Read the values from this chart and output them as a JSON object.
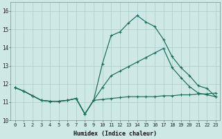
{
  "background_color": "#cde8e5",
  "grid_color": "#aaccca",
  "line_color": "#1a6b5a",
  "xlabel": "Humidex (Indice chaleur)",
  "xlim": [
    -0.5,
    23.5
  ],
  "ylim": [
    10.0,
    16.5
  ],
  "yticks": [
    10,
    11,
    12,
    13,
    14,
    15,
    16
  ],
  "xtick_labels": [
    "0",
    "1",
    "2",
    "3",
    "4",
    "5",
    "6",
    "7",
    "8",
    "9",
    "10",
    "11",
    "12",
    "13",
    "14",
    "15",
    "16",
    "17",
    "18",
    "19",
    "20",
    "21",
    "22",
    "23"
  ],
  "line1_y": [
    11.8,
    11.6,
    11.35,
    11.1,
    11.05,
    11.05,
    11.1,
    11.2,
    10.35,
    11.1,
    13.1,
    14.65,
    14.85,
    15.35,
    15.75,
    15.4,
    15.15,
    14.45,
    13.5,
    12.9,
    12.45,
    11.9,
    11.75,
    11.3
  ],
  "line2_y": [
    11.8,
    11.6,
    11.35,
    11.1,
    11.05,
    11.05,
    11.1,
    11.2,
    10.35,
    11.1,
    11.15,
    11.2,
    11.25,
    11.3,
    11.3,
    11.3,
    11.3,
    11.35,
    11.35,
    11.4,
    11.4,
    11.45,
    11.45,
    11.5
  ],
  "line3_y": [
    11.8,
    11.6,
    11.35,
    11.1,
    11.05,
    11.05,
    11.1,
    11.2,
    10.35,
    11.1,
    11.8,
    12.45,
    12.7,
    12.95,
    13.2,
    13.45,
    13.7,
    13.95,
    12.9,
    12.35,
    11.85,
    11.5,
    11.4,
    11.3
  ]
}
